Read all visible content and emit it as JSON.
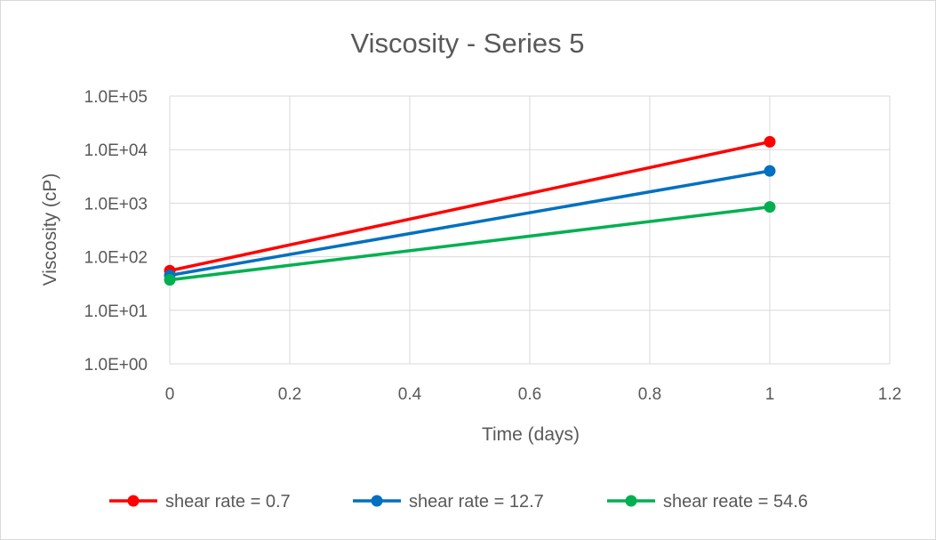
{
  "chart_data": {
    "type": "line",
    "title": "Viscosity - Series 5",
    "xlabel": "Time (days)",
    "ylabel": "Viscosity (cP)",
    "xlim": [
      0,
      1.2
    ],
    "ylim": [
      1,
      100000
    ],
    "yscale": "log",
    "grid": true,
    "legend_position": "bottom",
    "x_ticks": [
      "0",
      "0.2",
      "0.4",
      "0.6",
      "0.8",
      "1",
      "1.2"
    ],
    "y_ticks": [
      "1.0E+00",
      "1.0E+01",
      "1.0E+02",
      "1.0E+03",
      "1.0E+04",
      "1.0E+05"
    ],
    "series": [
      {
        "name": "shear rate = 0.7",
        "color": "#ff0000",
        "x": [
          0,
          1
        ],
        "y": [
          55,
          14000
        ]
      },
      {
        "name": "shear rate = 12.7",
        "color": "#0070c0",
        "x": [
          0,
          1
        ],
        "y": [
          45,
          4000
        ]
      },
      {
        "name": "shear reate = 54.6",
        "color": "#00b050",
        "x": [
          0,
          1
        ],
        "y": [
          37,
          850
        ]
      }
    ]
  }
}
